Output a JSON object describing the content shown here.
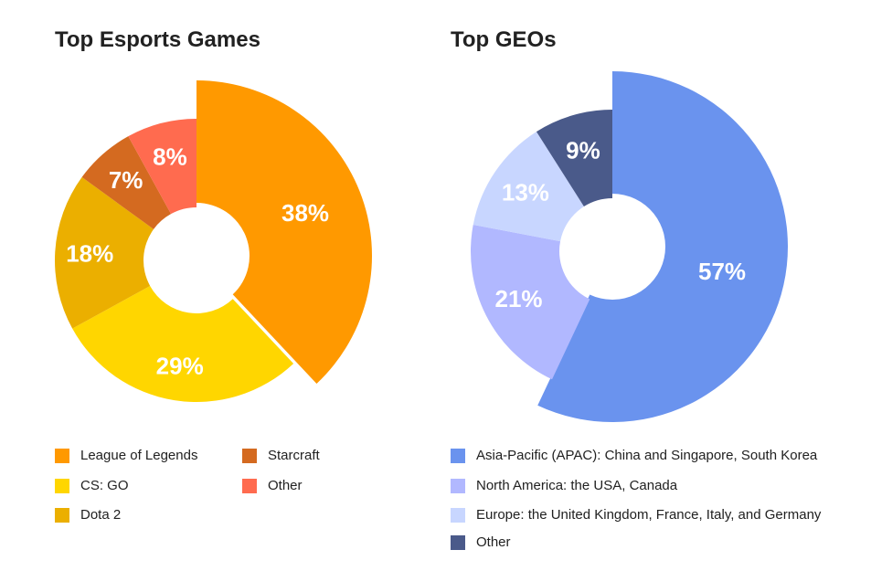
{
  "chart_data": [
    {
      "type": "pie",
      "variant": "donut-exploded",
      "title": "Top Esports Games",
      "slices": [
        {
          "label": "League of Legends",
          "value": 38,
          "display": "38%",
          "color": "#FF9900",
          "exploded": true
        },
        {
          "label": "CS: GO",
          "value": 29,
          "display": "29%",
          "color": "#FFD600"
        },
        {
          "label": "Dota 2",
          "value": 18,
          "display": "18%",
          "color": "#EBAF00"
        },
        {
          "label": "Starcraft",
          "value": 7,
          "display": "7%",
          "color": "#D46A20"
        },
        {
          "label": "Other",
          "value": 8,
          "display": "8%",
          "color": "#FF6B4F"
        }
      ],
      "legend_position": "bottom"
    },
    {
      "type": "pie",
      "variant": "donut-exploded",
      "title": "Top GEOs",
      "slices": [
        {
          "label": "Asia-Pacific (APAC): China and Singapore, South Korea",
          "value": 57,
          "display": "57%",
          "color": "#6A93EE",
          "exploded": true
        },
        {
          "label": "North America: the USA, Canada",
          "value": 21,
          "display": "21%",
          "color": "#B1B8FF"
        },
        {
          "label": "Europe: the United Kingdom, France, Italy, and Germany",
          "value": 13,
          "display": "13%",
          "color": "#C8D6FF"
        },
        {
          "label": "Other",
          "value": 9,
          "display": "9%",
          "color": "#4A5A8A"
        }
      ],
      "legend_position": "bottom"
    }
  ]
}
